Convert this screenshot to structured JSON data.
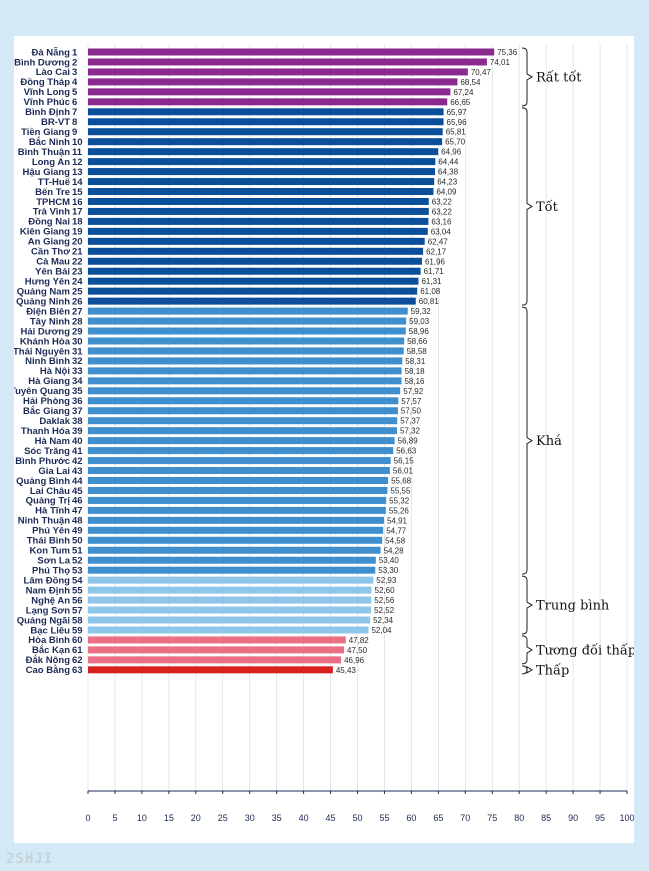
{
  "chart_data": {
    "type": "bar",
    "orientation": "horizontal",
    "xlim": [
      0,
      100
    ],
    "xticks": [
      "0",
      "5",
      "10",
      "15",
      "20",
      "25",
      "30",
      "35",
      "40",
      "45",
      "50",
      "55",
      "60",
      "65",
      "70",
      "75",
      "80",
      "85",
      "90",
      "95",
      "100"
    ],
    "grid": true,
    "categories": [
      "Đà Nẵng",
      "Bình Dương",
      "Lào Cai",
      "Đồng Tháp",
      "Vĩnh Long",
      "Vĩnh Phúc",
      "Bình Định",
      "BR-VT",
      "Tiền Giang",
      "Bắc Ninh",
      "Bình Thuận",
      "Long An",
      "Hậu Giang",
      "TT-Huế",
      "Bến Tre",
      "TPHCM",
      "Trà Vinh",
      "Đồng Nai",
      "Kiên Giang",
      "An Giang",
      "Cần Thơ",
      "Cà Mau",
      "Yên Bái",
      "Hưng Yên",
      "Quảng Nam",
      "Quảng Ninh",
      "Điện Biên",
      "Tây Ninh",
      "Hải Dương",
      "Khánh Hòa",
      "Thái Nguyên",
      "Ninh Bình",
      "Hà Nội",
      "Hà Giang",
      "Tuyên Quang",
      "Hải Phòng",
      "Bắc Giang",
      "Daklak",
      "Thanh Hóa",
      "Hà Nam",
      "Sóc Trăng",
      "Bình Phước",
      "Gia Lai",
      "Quảng Bình",
      "Lai Châu",
      "Quảng Trị",
      "Hà Tĩnh",
      "Ninh Thuận",
      "Phú Yên",
      "Thái Bình",
      "Kon Tum",
      "Sơn La",
      "Phú Thọ",
      "Lâm Đồng",
      "Nam Định",
      "Nghệ An",
      "Lạng Sơn",
      "Quảng Ngãi",
      "Bạc Liêu",
      "Hòa Bình",
      "Bắc Kạn",
      "Đắk Nông",
      "Cao Bằng"
    ],
    "ranks": [
      "1",
      "2",
      "3",
      "4",
      "5",
      "6",
      "7",
      "8",
      "9",
      "10",
      "11",
      "12",
      "13",
      "14",
      "15",
      "16",
      "17",
      "18",
      "19",
      "20",
      "21",
      "22",
      "23",
      "24",
      "25",
      "26",
      "27",
      "28",
      "29",
      "30",
      "31",
      "32",
      "33",
      "34",
      "35",
      "36",
      "37",
      "38",
      "39",
      "40",
      "41",
      "42",
      "43",
      "44",
      "45",
      "46",
      "47",
      "48",
      "49",
      "50",
      "51",
      "52",
      "53",
      "54",
      "55",
      "56",
      "57",
      "58",
      "59",
      "60",
      "61",
      "62",
      "63"
    ],
    "values": [
      75.36,
      74.01,
      70.47,
      68.54,
      67.24,
      66.65,
      65.97,
      65.96,
      65.81,
      65.7,
      64.96,
      64.44,
      64.38,
      64.23,
      64.09,
      63.22,
      63.22,
      63.16,
      63.04,
      62.47,
      62.17,
      61.96,
      61.71,
      61.31,
      61.08,
      60.81,
      59.32,
      59.03,
      58.96,
      58.66,
      58.58,
      58.31,
      58.18,
      58.16,
      57.92,
      57.57,
      57.5,
      57.37,
      57.32,
      56.89,
      56.63,
      56.15,
      56.01,
      55.68,
      55.55,
      55.32,
      55.26,
      54.91,
      54.77,
      54.58,
      54.28,
      53.4,
      53.3,
      52.93,
      52.6,
      52.56,
      52.52,
      52.34,
      52.04,
      47.82,
      47.5,
      46.96,
      45.43
    ],
    "value_labels": [
      "75,36",
      "74,01",
      "70,47",
      "68,54",
      "67,24",
      "66,65",
      "65,97",
      "65,96",
      "65,81",
      "65,70",
      "64,96",
      "64,44",
      "64,38",
      "64,23",
      "64,09",
      "63,22",
      "63,22",
      "63,16",
      "63,04",
      "62,47",
      "62,17",
      "61,96",
      "61,71",
      "61,31",
      "61,08",
      "60,81",
      "59,32",
      "59,03",
      "58,96",
      "58,66",
      "58,58",
      "58,31",
      "58,18",
      "58,16",
      "57,92",
      "57,57",
      "57,50",
      "57,37",
      "57,32",
      "56,89",
      "56,63",
      "56,15",
      "56,01",
      "55,68",
      "55,55",
      "55,32",
      "55,26",
      "54,91",
      "54,77",
      "54,58",
      "54,28",
      "53,40",
      "53,30",
      "52,93",
      "52,60",
      "52,56",
      "52,52",
      "52,34",
      "52,04",
      "47,82",
      "47,50",
      "46,96",
      "45,43"
    ],
    "groups": [
      {
        "label": "Rất tốt",
        "start": 0,
        "end": 5,
        "color": "#8b2a8e"
      },
      {
        "label": "Tốt",
        "start": 6,
        "end": 25,
        "color": "#0b4f9a"
      },
      {
        "label": "Khá",
        "start": 26,
        "end": 52,
        "color": "#3f8fcf"
      },
      {
        "label": "Trung bình",
        "start": 53,
        "end": 58,
        "color": "#8ec5ea"
      },
      {
        "label": "Tương đối thấp",
        "start": 59,
        "end": 61,
        "color": "#ea6f84"
      },
      {
        "label": "Thấp",
        "start": 62,
        "end": 62,
        "color": "#d8201f"
      }
    ]
  },
  "watermark": "2SHJI"
}
